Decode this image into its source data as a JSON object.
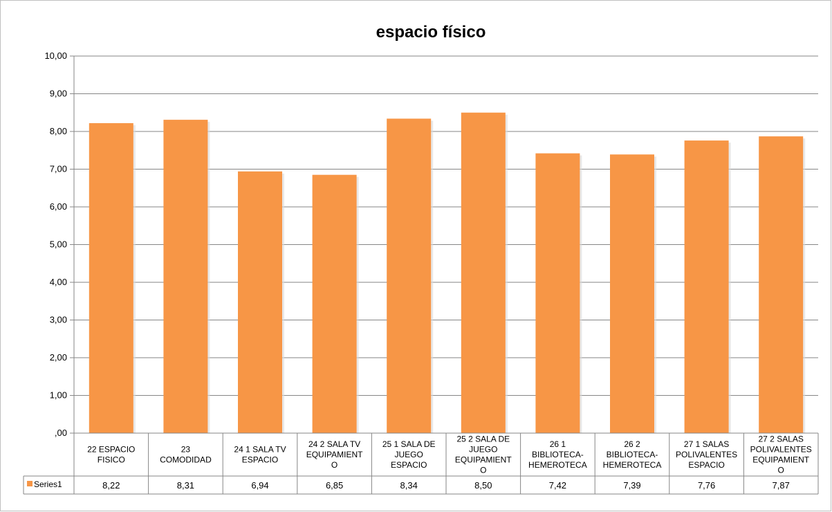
{
  "chart_data": {
    "type": "bar",
    "title": "espacio físico",
    "xlabel": "",
    "ylabel": "",
    "ylim": [
      0,
      10
    ],
    "y_ticks": [
      ",00",
      "1,00",
      "2,00",
      "3,00",
      "4,00",
      "5,00",
      "6,00",
      "7,00",
      "8,00",
      "9,00",
      "10,00"
    ],
    "grid": true,
    "legend": "data-table-left",
    "categories": [
      [
        "22 ESPACIO",
        "FISICO"
      ],
      [
        "23",
        "COMODIDAD"
      ],
      [
        "24 1 SALA TV",
        "ESPACIO"
      ],
      [
        "24 2 SALA TV",
        "EQUIPAMIENT",
        "O"
      ],
      [
        "25 1 SALA DE",
        "JUEGO",
        "ESPACIO"
      ],
      [
        "25 2 SALA DE",
        "JUEGO",
        "EQUIPAMIENT",
        "O"
      ],
      [
        "26 1",
        "BIBLIOTECA-",
        "HEMEROTECA"
      ],
      [
        "26 2",
        "BIBLIOTECA-",
        "HEMEROTECA"
      ],
      [
        "27 1 SALAS",
        "POLIVALENTES",
        "ESPACIO"
      ],
      [
        "27 2 SALAS",
        "POLIVALENTES",
        "EQUIPAMIENT",
        "O"
      ]
    ],
    "series": [
      {
        "name": "Series1",
        "color": "#f79646",
        "values": [
          8.22,
          8.31,
          6.94,
          6.85,
          8.34,
          8.5,
          7.42,
          7.39,
          7.76,
          7.87
        ],
        "labels": [
          "8,22",
          "8,31",
          "6,94",
          "6,85",
          "8,34",
          "8,50",
          "7,42",
          "7,39",
          "7,76",
          "7,87"
        ]
      }
    ]
  }
}
